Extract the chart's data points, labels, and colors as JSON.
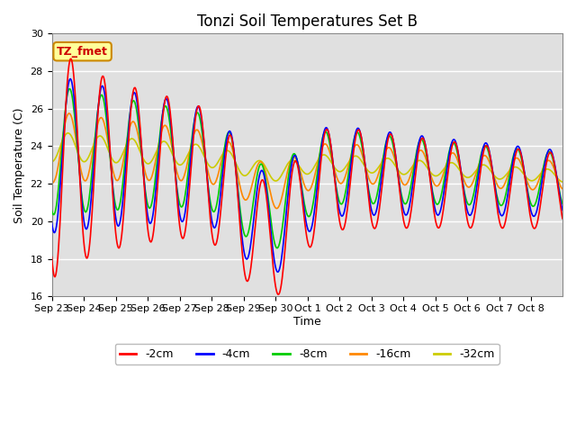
{
  "title": "Tonzi Soil Temperatures Set B",
  "xlabel": "Time",
  "ylabel": "Soil Temperature (C)",
  "ylim": [
    16,
    30
  ],
  "yticks": [
    16,
    18,
    20,
    22,
    24,
    26,
    28,
    30
  ],
  "line_colors": {
    "-2cm": "#ff0000",
    "-4cm": "#0000ff",
    "-8cm": "#00cc00",
    "-16cm": "#ff8800",
    "-32cm": "#cccc00"
  },
  "legend_label": "TZ_fmet",
  "legend_bg": "#ffff99",
  "legend_border": "#cc8800",
  "x_tick_labels": [
    "Sep 23",
    "Sep 24",
    "Sep 25",
    "Sep 26",
    "Sep 27",
    "Sep 28",
    "Sep 29",
    "Sep 30",
    "Oct 1",
    "Oct 2",
    "Oct 3",
    "Oct 4",
    "Oct 5",
    "Oct 6",
    "Oct 7",
    "Oct 8"
  ],
  "series_labels": [
    "-2cm",
    "-4cm",
    "-8cm",
    "-16cm",
    "-32cm"
  ],
  "title_fontsize": 12,
  "axis_label_fontsize": 9,
  "tick_fontsize": 8,
  "legend_fontsize": 9,
  "figsize": [
    6.4,
    4.8
  ],
  "dpi": 100
}
